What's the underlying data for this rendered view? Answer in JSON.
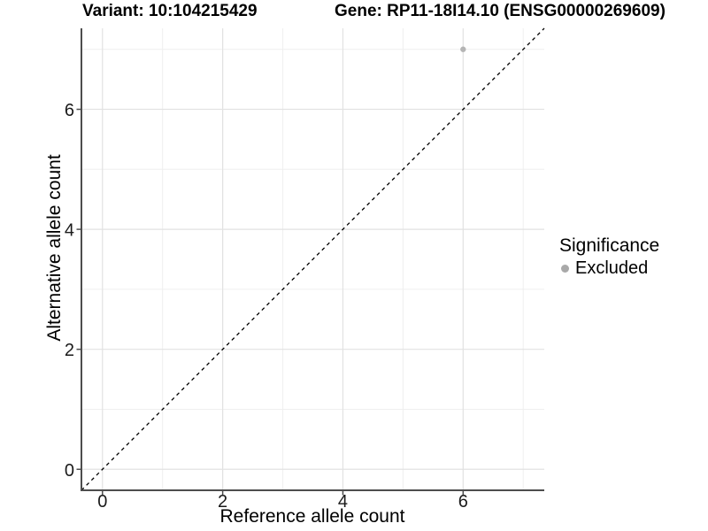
{
  "chart_data": {
    "type": "scatter",
    "title_left": "Variant: 10:104215429",
    "title_right": "Gene: RP11-18I14.10 (ENSG00000269609)",
    "xlabel": "Reference allele count",
    "ylabel": "Alternative allele count",
    "xlim": [
      -0.35,
      7.35
    ],
    "ylim": [
      -0.35,
      7.35
    ],
    "xticks": {
      "major": [
        0,
        2,
        4,
        6
      ],
      "labels": [
        "0",
        "2",
        "4",
        "6"
      ],
      "minor": [
        1,
        3,
        5,
        7
      ]
    },
    "yticks": {
      "major": [
        0,
        2,
        4,
        6
      ],
      "labels": [
        "0",
        "2",
        "4",
        "6"
      ],
      "minor": [
        1,
        3,
        5,
        7
      ]
    },
    "grid": "on",
    "reference_line": {
      "shape": "identity-diagonal",
      "linestyle": "dashed",
      "color": "#000000"
    },
    "series": [
      {
        "name": "Excluded",
        "color": "#b5b5b5",
        "points": [
          {
            "x": 6,
            "y": 7
          }
        ]
      }
    ],
    "legend": {
      "title": "Significance",
      "position": "right",
      "items": [
        {
          "label": "Excluded",
          "color": "#a9a9a9"
        }
      ]
    },
    "colors": {
      "background": "#ffffff",
      "grid_major": "#e2e2e2",
      "grid_minor": "#efefef",
      "axis_line": "#4d4d4d",
      "tick_text": "#1a1a1a"
    }
  }
}
